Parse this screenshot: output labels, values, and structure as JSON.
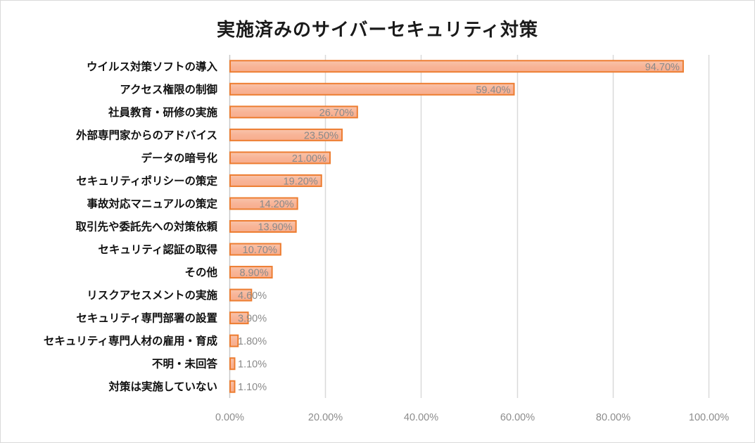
{
  "chart_data": {
    "type": "bar",
    "orientation": "horizontal",
    "title": "実施済みのサイバーセキュリティ対策",
    "xlabel": "",
    "ylabel": "",
    "xlim": [
      0,
      100
    ],
    "x_ticks": [
      0,
      20,
      40,
      60,
      80,
      100
    ],
    "x_tick_labels": [
      "0.00%",
      "20.00%",
      "40.00%",
      "60.00%",
      "80.00%",
      "100.00%"
    ],
    "grid": "vertical",
    "legend": "none",
    "categories": [
      "ウイルス対策ソフトの導入",
      "アクセス権限の制御",
      "社員教育・研修の実施",
      "外部専門家からのアドバイス",
      "データの暗号化",
      "セキュリティポリシーの策定",
      "事故対応マニュアルの策定",
      "取引先や委託先への対策依頼",
      "セキュリティ認証の取得",
      "その他",
      "リスクアセスメントの実施",
      "セキュリティ専門部署の設置",
      "セキュリティ専門人材の雇用・育成",
      "不明・未回答",
      "対策は実施していない"
    ],
    "values": [
      94.7,
      59.4,
      26.7,
      23.5,
      21.0,
      19.2,
      14.2,
      13.9,
      10.7,
      8.9,
      4.6,
      3.9,
      1.8,
      1.1,
      1.1
    ],
    "data_labels": [
      "94.70%",
      "59.40%",
      "26.70%",
      "23.50%",
      "21.00%",
      "19.20%",
      "14.20%",
      "13.90%",
      "10.70%",
      "8.90%",
      "4.60%",
      "3.90%",
      "1.80%",
      "1.10%",
      "1.10%"
    ],
    "colors": {
      "bar_fill": "#f8b89c",
      "bar_stroke": "#ed7d31",
      "grid": "#d9d9d9",
      "tick_text": "#8c8c8c",
      "label_text": "#111111"
    }
  }
}
